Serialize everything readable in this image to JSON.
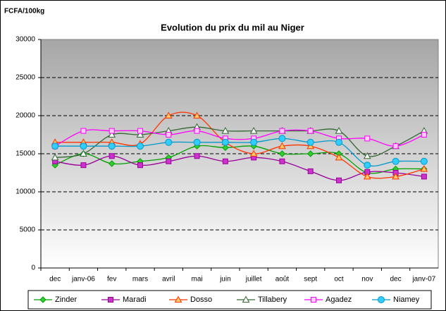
{
  "chart_data": {
    "type": "line",
    "title": "Evolution du prix du mil au Niger",
    "y_label": "FCFA/100kg",
    "categories": [
      "dec",
      "janv-06",
      "fev",
      "mars",
      "avril",
      "mai",
      "juin",
      "juillet",
      "août",
      "sept",
      "oct",
      "nov",
      "dec",
      "janv-07"
    ],
    "ylim": [
      0,
      30000
    ],
    "yticks": [
      0,
      5000,
      10000,
      15000,
      20000,
      25000,
      30000
    ],
    "grid": true,
    "legend": "bottom",
    "series": [
      {
        "name": "Zinder",
        "color": "#00a000",
        "marker": "diamond",
        "marker_fill": "#33cc33",
        "values": [
          13500,
          15000,
          13700,
          14000,
          14500,
          16000,
          15800,
          16000,
          15000,
          15000,
          15000,
          12500,
          13000,
          13000
        ]
      },
      {
        "name": "Maradi",
        "color": "#990099",
        "marker": "square",
        "marker_fill": "#cc33cc",
        "values": [
          14000,
          13500,
          14700,
          13500,
          14000,
          14700,
          14000,
          14500,
          14000,
          12700,
          11500,
          12600,
          12500,
          12000
        ]
      },
      {
        "name": "Dosso",
        "color": "#ff3300",
        "marker": "triangle",
        "marker_fill": "#ffcc66",
        "values": [
          16500,
          16500,
          16500,
          16300,
          20000,
          20000,
          16500,
          15000,
          16000,
          16000,
          14500,
          12000,
          12000,
          13000
        ]
      },
      {
        "name": "Tillabery",
        "color": "#336633",
        "marker": "triangle",
        "marker_fill": "#ffffff",
        "values": [
          14500,
          15000,
          17500,
          17500,
          18000,
          18500,
          18000,
          18000,
          18000,
          18000,
          18000,
          14700,
          16000,
          18000
        ]
      },
      {
        "name": "Agadez",
        "color": "#ff00ff",
        "marker": "square",
        "marker_fill": "#ffccff",
        "values": [
          16000,
          18000,
          18000,
          18000,
          17500,
          18000,
          17000,
          17000,
          18000,
          18000,
          17000,
          17000,
          16000,
          17500
        ]
      },
      {
        "name": "Niamey",
        "color": "#0099cc",
        "marker": "circle",
        "marker_fill": "#33ccff",
        "values": [
          16000,
          16000,
          16000,
          16000,
          16500,
          16500,
          16500,
          16500,
          17000,
          16500,
          16500,
          13500,
          14000,
          14000
        ]
      }
    ]
  }
}
